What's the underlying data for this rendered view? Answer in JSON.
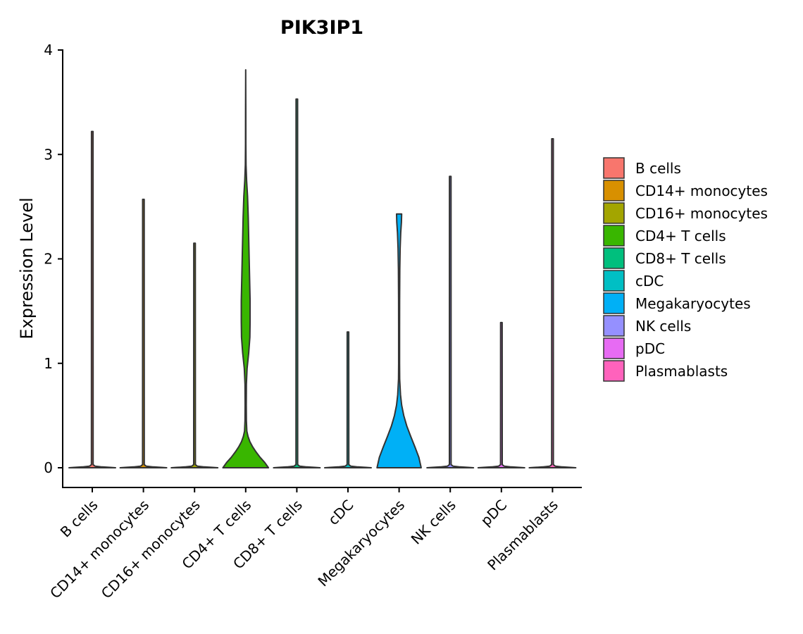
{
  "chart_data": {
    "type": "violin",
    "title": "PIK3IP1",
    "xlabel": "",
    "ylabel": "Expression Level",
    "ylim": [
      -0.18,
      4.0
    ],
    "yticks": [
      0,
      1,
      2,
      3,
      4
    ],
    "grid": false,
    "legend_position": "right",
    "categories": [
      "B cells",
      "CD14+ monocytes",
      "CD16+ monocytes",
      "CD4+ T cells",
      "CD8+ T cells",
      "cDC",
      "Megakaryocytes",
      "NK cells",
      "pDC",
      "Plasmablasts"
    ],
    "max_values": [
      3.22,
      2.57,
      2.15,
      3.81,
      3.53,
      1.3,
      2.43,
      2.79,
      1.39,
      3.15
    ],
    "colors": [
      "#F8766D",
      "#D89000",
      "#A3A500",
      "#39B600",
      "#00BF7D",
      "#00BFC4",
      "#00B0F6",
      "#9590FF",
      "#E76BF3",
      "#FF62BC"
    ],
    "density": {
      "CD4+ T cells": [
        [
          0.0,
          0.98
        ],
        [
          0.05,
          0.82
        ],
        [
          0.1,
          0.62
        ],
        [
          0.15,
          0.45
        ],
        [
          0.2,
          0.3
        ],
        [
          0.25,
          0.18
        ],
        [
          0.3,
          0.1
        ],
        [
          0.35,
          0.05
        ],
        [
          0.45,
          0.03
        ],
        [
          0.6,
          0.025
        ],
        [
          0.8,
          0.03
        ],
        [
          0.95,
          0.06
        ],
        [
          1.1,
          0.13
        ],
        [
          1.25,
          0.18
        ],
        [
          1.4,
          0.19
        ],
        [
          1.6,
          0.19
        ],
        [
          1.8,
          0.17
        ],
        [
          2.0,
          0.15
        ],
        [
          2.2,
          0.13
        ],
        [
          2.4,
          0.11
        ],
        [
          2.6,
          0.08
        ],
        [
          2.75,
          0.04
        ],
        [
          2.9,
          0.015
        ],
        [
          3.1,
          0.008
        ],
        [
          3.4,
          0.006
        ],
        [
          3.81,
          0.0
        ]
      ],
      "Megakaryocytes": [
        [
          0.0,
          0.95
        ],
        [
          0.1,
          0.85
        ],
        [
          0.2,
          0.68
        ],
        [
          0.3,
          0.5
        ],
        [
          0.4,
          0.33
        ],
        [
          0.5,
          0.2
        ],
        [
          0.6,
          0.11
        ],
        [
          0.7,
          0.06
        ],
        [
          0.85,
          0.025
        ],
        [
          1.0,
          0.02
        ],
        [
          1.3,
          0.02
        ],
        [
          1.6,
          0.022
        ],
        [
          1.9,
          0.03
        ],
        [
          2.1,
          0.045
        ],
        [
          2.25,
          0.07
        ],
        [
          2.35,
          0.1
        ],
        [
          2.43,
          0.11
        ]
      ]
    }
  }
}
